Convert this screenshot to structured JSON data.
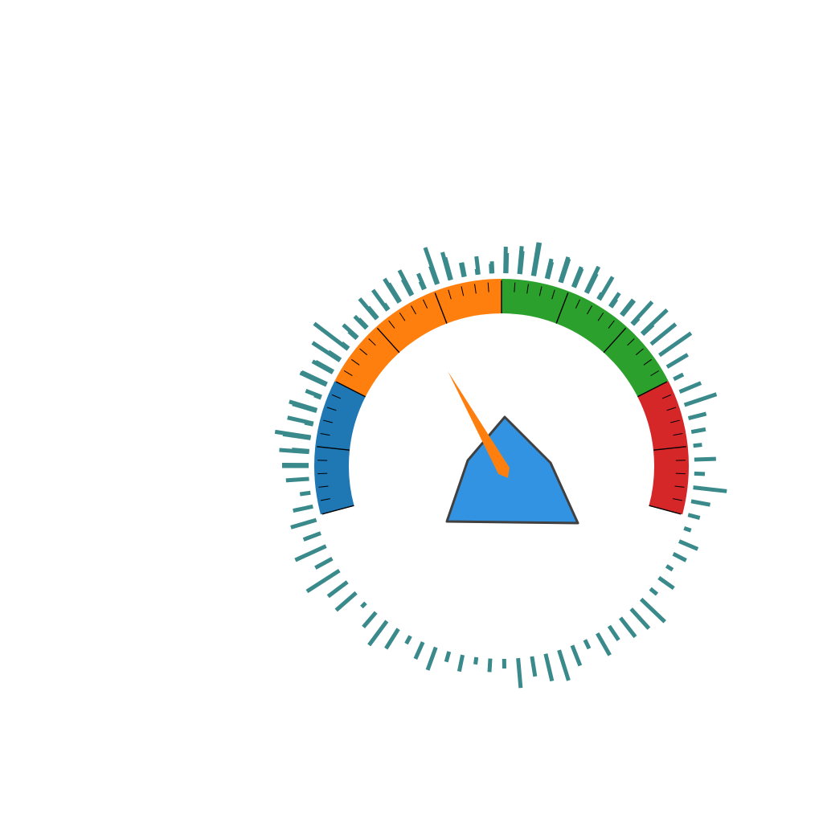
{
  "chart_data": {
    "type": "gauge",
    "title": "",
    "value": 0.36,
    "range": [
      0,
      1
    ],
    "needle_color": "#ff7f0e",
    "hub_color": "#3393e3",
    "hub_outline_color": "#404040",
    "tick_color": "#000000",
    "bands": [
      {
        "from": 0.0,
        "to": 0.2,
        "color": "#1f77b4"
      },
      {
        "from": 0.2,
        "to": 0.5,
        "color": "#ff7f0e"
      },
      {
        "from": 0.5,
        "to": 0.8,
        "color": "#2ca02c"
      },
      {
        "from": 0.8,
        "to": 1.0,
        "color": "#d62728"
      }
    ],
    "radial_bars": {
      "color": "#3a8a8c",
      "start_angle_deg": 180,
      "end_angle_deg": 43,
      "values": [
        0.55,
        0.62,
        0.58,
        0.18,
        0.52,
        0.15,
        0.6,
        0.48,
        0.68,
        0.88,
        0.22,
        0.35,
        0.55,
        0.52,
        0.58,
        0.38,
        0.18,
        0.4,
        0.6,
        0.3,
        0.12,
        0.2,
        0.55,
        0.58,
        0.7,
        0.42,
        0.55,
        0.45,
        0.6,
        0.15,
        0.34,
        0.4,
        0.62,
        0.72,
        0.66,
        0.8,
        0.5,
        0.22,
        0.48,
        0.7,
        0.38,
        0.3,
        0.18,
        0.45,
        0.22,
        0.7,
        0.4,
        0.25,
        0.15,
        0.42,
        0.3,
        0.15,
        0.38,
        0.18,
        0.68,
        0.55,
        0.5,
        0.35,
        0.52,
        0.2,
        0.45,
        0.66,
        0.58,
        0.42,
        0.62,
        0.2,
        0.28,
        0.15,
        0.35,
        0.22,
        0.5,
        0.38,
        0.18,
        0.48,
        0.62,
        0.4,
        0.12,
        0.55,
        0.5,
        0.8,
        0.4,
        0.7,
        0.38,
        0.55,
        0.42,
        0.22,
        0.48,
        0.55,
        0.36,
        0.75,
        0.55,
        0.6,
        0.35,
        0.58,
        0.42,
        0.3,
        0.18,
        0.4,
        0.25,
        0.3,
        0.15,
        0.45,
        0.58,
        0.35,
        0.8,
        0.48,
        0.3,
        0.38,
        0.25,
        0.42,
        0.48,
        0.7,
        0.36,
        0.52,
        0.42,
        0.45,
        0.55,
        0.2,
        0.4,
        0.18,
        0.3
      ]
    }
  }
}
